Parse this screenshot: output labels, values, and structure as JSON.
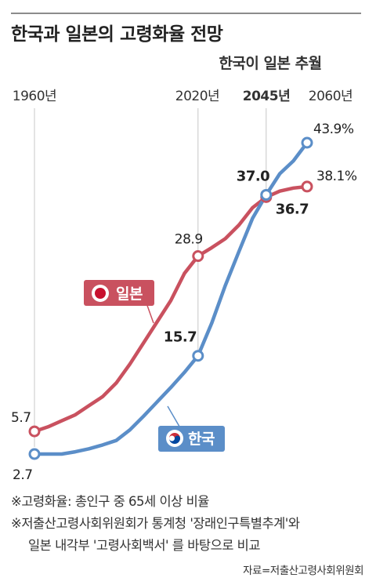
{
  "title": "한국과 일본의 고령화율 전망",
  "chart_data": {
    "type": "line",
    "title": "한국과 일본의 고령화율 전망",
    "subtitle": "한국이 일본 추월",
    "x_ticks": [
      {
        "label": "1960년",
        "year": 1960,
        "bold": false
      },
      {
        "label": "2020년",
        "year": 2020,
        "bold": false
      },
      {
        "label": "2045년",
        "year": 2045,
        "bold": true
      },
      {
        "label": "2060년",
        "year": 2060,
        "bold": false
      }
    ],
    "xlim": [
      1960,
      2060
    ],
    "ylim": [
      2.7,
      43.9
    ],
    "unit": "%",
    "grid": "vertical lines at labeled years",
    "series": [
      {
        "name": "일본",
        "color": "#c9515f",
        "points": [
          {
            "year": 1960,
            "value": 5.7
          },
          {
            "year": 1965,
            "value": 6.3
          },
          {
            "year": 1970,
            "value": 7.1
          },
          {
            "year": 1975,
            "value": 7.9
          },
          {
            "year": 1980,
            "value": 9.1
          },
          {
            "year": 1985,
            "value": 10.3
          },
          {
            "year": 1990,
            "value": 12.1
          },
          {
            "year": 1995,
            "value": 14.6
          },
          {
            "year": 2000,
            "value": 17.4
          },
          {
            "year": 2005,
            "value": 20.2
          },
          {
            "year": 2010,
            "value": 23.0
          },
          {
            "year": 2015,
            "value": 26.6
          },
          {
            "year": 2020,
            "value": 28.9
          },
          {
            "year": 2025,
            "value": 30.0
          },
          {
            "year": 2030,
            "value": 31.2
          },
          {
            "year": 2035,
            "value": 33.0
          },
          {
            "year": 2040,
            "value": 35.3
          },
          {
            "year": 2045,
            "value": 36.7
          },
          {
            "year": 2050,
            "value": 37.5
          },
          {
            "year": 2055,
            "value": 37.9
          },
          {
            "year": 2060,
            "value": 38.1
          }
        ],
        "markers": [
          1960,
          2020,
          2045,
          2060
        ]
      },
      {
        "name": "한국",
        "color": "#5b8ec8",
        "points": [
          {
            "year": 1960,
            "value": 2.7
          },
          {
            "year": 1965,
            "value": 2.7
          },
          {
            "year": 1970,
            "value": 2.7
          },
          {
            "year": 1975,
            "value": 3.0
          },
          {
            "year": 1980,
            "value": 3.4
          },
          {
            "year": 1985,
            "value": 3.9
          },
          {
            "year": 1990,
            "value": 4.5
          },
          {
            "year": 1995,
            "value": 5.9
          },
          {
            "year": 2000,
            "value": 7.7
          },
          {
            "year": 2005,
            "value": 9.6
          },
          {
            "year": 2010,
            "value": 11.5
          },
          {
            "year": 2015,
            "value": 13.5
          },
          {
            "year": 2020,
            "value": 15.7
          },
          {
            "year": 2025,
            "value": 20.0
          },
          {
            "year": 2030,
            "value": 25.0
          },
          {
            "year": 2035,
            "value": 29.5
          },
          {
            "year": 2040,
            "value": 33.9
          },
          {
            "year": 2045,
            "value": 37.0
          },
          {
            "year": 2050,
            "value": 39.8
          },
          {
            "year": 2055,
            "value": 41.5
          },
          {
            "year": 2060,
            "value": 43.9
          }
        ],
        "markers": [
          1960,
          2020,
          2045,
          2060
        ]
      }
    ],
    "annotations": [
      {
        "series": "일본",
        "year": 1960,
        "text": "5.7",
        "bold": false
      },
      {
        "series": "일본",
        "year": 2020,
        "text": "28.9",
        "bold": false
      },
      {
        "series": "일본",
        "year": 2045,
        "text": "36.7",
        "bold": true
      },
      {
        "series": "일본",
        "year": 2060,
        "text": "38.1%",
        "bold": false
      },
      {
        "series": "한국",
        "year": 1960,
        "text": "2.7",
        "bold": false
      },
      {
        "series": "한국",
        "year": 2020,
        "text": "15.7",
        "bold": true
      },
      {
        "series": "한국",
        "year": 2045,
        "text": "37.0",
        "bold": true
      },
      {
        "series": "한국",
        "year": 2060,
        "text": "43.9%",
        "bold": false
      }
    ],
    "legend": [
      {
        "series": "일본",
        "label": "일본",
        "flag": "japan-flag",
        "color": "#c9515f"
      },
      {
        "series": "한국",
        "label": "한국",
        "flag": "korea-flag",
        "color": "#5b8ec8"
      }
    ]
  },
  "notes": [
    "※고령화율: 총인구 중 65세 이상 비율",
    "※저출산고령사회위원회가 통계청 '장래인구특별추계'와",
    "일본 내각부 '고령사회백서' 를 바탕으로 비교"
  ],
  "source": "자료=저출산고령사회위원회"
}
